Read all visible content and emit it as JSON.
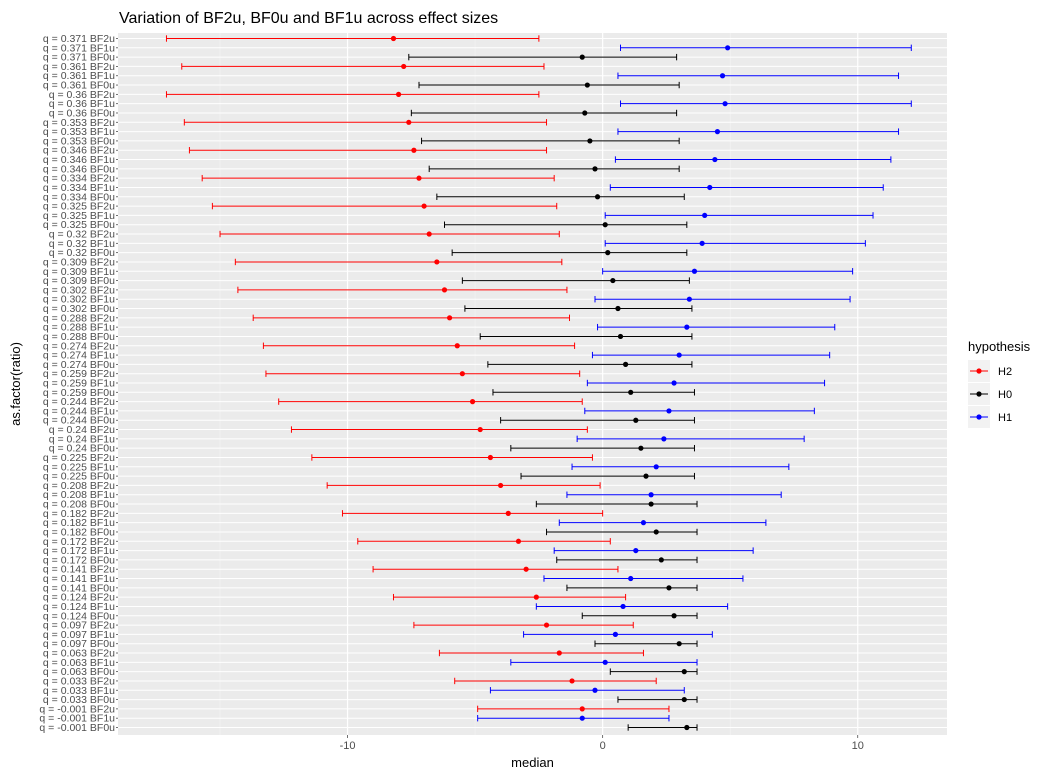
{
  "chart_data": {
    "type": "errorbar",
    "title": "Variation of BF2u, BF0u and BF1u across effect sizes",
    "xlabel": "median",
    "ylabel": "as.factor(ratio)",
    "xlim": [
      -19,
      13.5
    ],
    "x_ticks": [
      -10,
      0,
      10
    ],
    "grid": true,
    "legend": {
      "title": "hypothesis",
      "placement": "right",
      "entries": [
        {
          "name": "H2",
          "color": "#ff0000"
        },
        {
          "name": "H0",
          "color": "#000000"
        },
        {
          "name": "H1",
          "color": "#0000ff"
        }
      ]
    },
    "rows": [
      {
        "label": "q = 0.371 BF2u",
        "hypothesis": "H2",
        "median": -8.2,
        "low": -17.1,
        "high": -2.5
      },
      {
        "label": "q = 0.371 BF1u",
        "hypothesis": "H1",
        "median": 4.9,
        "low": 0.7,
        "high": 12.1
      },
      {
        "label": "q = 0.371 BF0u",
        "hypothesis": "H0",
        "median": -0.8,
        "low": -7.6,
        "high": 2.9
      },
      {
        "label": "q = 0.361 BF2u",
        "hypothesis": "H2",
        "median": -7.8,
        "low": -16.5,
        "high": -2.3
      },
      {
        "label": "q = 0.361 BF1u",
        "hypothesis": "H1",
        "median": 4.7,
        "low": 0.6,
        "high": 11.6
      },
      {
        "label": "q = 0.361 BF0u",
        "hypothesis": "H0",
        "median": -0.6,
        "low": -7.2,
        "high": 3.0
      },
      {
        "label": "q = 0.36 BF2u",
        "hypothesis": "H2",
        "median": -8.0,
        "low": -17.1,
        "high": -2.5
      },
      {
        "label": "q = 0.36 BF1u",
        "hypothesis": "H1",
        "median": 4.8,
        "low": 0.7,
        "high": 12.1
      },
      {
        "label": "q = 0.36 BF0u",
        "hypothesis": "H0",
        "median": -0.7,
        "low": -7.5,
        "high": 2.9
      },
      {
        "label": "q = 0.353 BF2u",
        "hypothesis": "H2",
        "median": -7.6,
        "low": -16.4,
        "high": -2.2
      },
      {
        "label": "q = 0.353 BF1u",
        "hypothesis": "H1",
        "median": 4.5,
        "low": 0.6,
        "high": 11.6
      },
      {
        "label": "q = 0.353 BF0u",
        "hypothesis": "H0",
        "median": -0.5,
        "low": -7.1,
        "high": 3.0
      },
      {
        "label": "q = 0.346 BF2u",
        "hypothesis": "H2",
        "median": -7.4,
        "low": -16.2,
        "high": -2.2
      },
      {
        "label": "q = 0.346 BF1u",
        "hypothesis": "H1",
        "median": 4.4,
        "low": 0.5,
        "high": 11.3
      },
      {
        "label": "q = 0.346 BF0u",
        "hypothesis": "H0",
        "median": -0.3,
        "low": -6.8,
        "high": 3.0
      },
      {
        "label": "q = 0.334 BF2u",
        "hypothesis": "H2",
        "median": -7.2,
        "low": -15.7,
        "high": -1.9
      },
      {
        "label": "q = 0.334 BF1u",
        "hypothesis": "H1",
        "median": 4.2,
        "low": 0.3,
        "high": 11.0
      },
      {
        "label": "q = 0.334 BF0u",
        "hypothesis": "H0",
        "median": -0.2,
        "low": -6.5,
        "high": 3.2
      },
      {
        "label": "q = 0.325 BF2u",
        "hypothesis": "H2",
        "median": -7.0,
        "low": -15.3,
        "high": -1.8
      },
      {
        "label": "q = 0.325 BF1u",
        "hypothesis": "H1",
        "median": 4.0,
        "low": 0.1,
        "high": 10.6
      },
      {
        "label": "q = 0.325 BF0u",
        "hypothesis": "H0",
        "median": 0.1,
        "low": -6.2,
        "high": 3.3
      },
      {
        "label": "q = 0.32 BF2u",
        "hypothesis": "H2",
        "median": -6.8,
        "low": -15.0,
        "high": -1.7
      },
      {
        "label": "q = 0.32 BF1u",
        "hypothesis": "H1",
        "median": 3.9,
        "low": 0.1,
        "high": 10.3
      },
      {
        "label": "q = 0.32 BF0u",
        "hypothesis": "H0",
        "median": 0.2,
        "low": -5.9,
        "high": 3.3
      },
      {
        "label": "q = 0.309 BF2u",
        "hypothesis": "H2",
        "median": -6.5,
        "low": -14.4,
        "high": -1.6
      },
      {
        "label": "q = 0.309 BF1u",
        "hypothesis": "H1",
        "median": 3.6,
        "low": 0.0,
        "high": 9.8
      },
      {
        "label": "q = 0.309 BF0u",
        "hypothesis": "H0",
        "median": 0.4,
        "low": -5.5,
        "high": 3.4
      },
      {
        "label": "q = 0.302 BF2u",
        "hypothesis": "H2",
        "median": -6.2,
        "low": -14.3,
        "high": -1.4
      },
      {
        "label": "q = 0.302 BF1u",
        "hypothesis": "H1",
        "median": 3.4,
        "low": -0.3,
        "high": 9.7
      },
      {
        "label": "q = 0.302 BF0u",
        "hypothesis": "H0",
        "median": 0.6,
        "low": -5.4,
        "high": 3.5
      },
      {
        "label": "q = 0.288 BF2u",
        "hypothesis": "H2",
        "median": -6.0,
        "low": -13.7,
        "high": -1.3
      },
      {
        "label": "q = 0.288 BF1u",
        "hypothesis": "H1",
        "median": 3.3,
        "low": -0.2,
        "high": 9.1
      },
      {
        "label": "q = 0.288 BF0u",
        "hypothesis": "H0",
        "median": 0.7,
        "low": -4.8,
        "high": 3.5
      },
      {
        "label": "q = 0.274 BF2u",
        "hypothesis": "H2",
        "median": -5.7,
        "low": -13.3,
        "high": -1.1
      },
      {
        "label": "q = 0.274 BF1u",
        "hypothesis": "H1",
        "median": 3.0,
        "low": -0.4,
        "high": 8.9
      },
      {
        "label": "q = 0.274 BF0u",
        "hypothesis": "H0",
        "median": 0.9,
        "low": -4.5,
        "high": 3.5
      },
      {
        "label": "q = 0.259 BF2u",
        "hypothesis": "H2",
        "median": -5.5,
        "low": -13.2,
        "high": -0.9
      },
      {
        "label": "q = 0.259 BF1u",
        "hypothesis": "H1",
        "median": 2.8,
        "low": -0.6,
        "high": 8.7
      },
      {
        "label": "q = 0.259 BF0u",
        "hypothesis": "H0",
        "median": 1.1,
        "low": -4.3,
        "high": 3.6
      },
      {
        "label": "q = 0.244 BF2u",
        "hypothesis": "H2",
        "median": -5.1,
        "low": -12.7,
        "high": -0.8
      },
      {
        "label": "q = 0.244 BF1u",
        "hypothesis": "H1",
        "median": 2.6,
        "low": -0.7,
        "high": 8.3
      },
      {
        "label": "q = 0.244 BF0u",
        "hypothesis": "H0",
        "median": 1.3,
        "low": -4.0,
        "high": 3.6
      },
      {
        "label": "q = 0.24 BF2u",
        "hypothesis": "H2",
        "median": -4.8,
        "low": -12.2,
        "high": -0.6
      },
      {
        "label": "q = 0.24 BF1u",
        "hypothesis": "H1",
        "median": 2.4,
        "low": -1.0,
        "high": 7.9
      },
      {
        "label": "q = 0.24 BF0u",
        "hypothesis": "H0",
        "median": 1.5,
        "low": -3.6,
        "high": 3.6
      },
      {
        "label": "q = 0.225 BF2u",
        "hypothesis": "H2",
        "median": -4.4,
        "low": -11.4,
        "high": -0.4
      },
      {
        "label": "q = 0.225 BF1u",
        "hypothesis": "H1",
        "median": 2.1,
        "low": -1.2,
        "high": 7.3
      },
      {
        "label": "q = 0.225 BF0u",
        "hypothesis": "H0",
        "median": 1.7,
        "low": -3.2,
        "high": 3.6
      },
      {
        "label": "q = 0.208 BF2u",
        "hypothesis": "H2",
        "median": -4.0,
        "low": -10.8,
        "high": -0.1
      },
      {
        "label": "q = 0.208 BF1u",
        "hypothesis": "H1",
        "median": 1.9,
        "low": -1.4,
        "high": 7.0
      },
      {
        "label": "q = 0.208 BF0u",
        "hypothesis": "H0",
        "median": 1.9,
        "low": -2.6,
        "high": 3.7
      },
      {
        "label": "q = 0.182 BF2u",
        "hypothesis": "H2",
        "median": -3.7,
        "low": -10.2,
        "high": 0.0
      },
      {
        "label": "q = 0.182 BF1u",
        "hypothesis": "H1",
        "median": 1.6,
        "low": -1.7,
        "high": 6.4
      },
      {
        "label": "q = 0.182 BF0u",
        "hypothesis": "H0",
        "median": 2.1,
        "low": -2.2,
        "high": 3.7
      },
      {
        "label": "q = 0.172 BF2u",
        "hypothesis": "H2",
        "median": -3.3,
        "low": -9.6,
        "high": 0.3
      },
      {
        "label": "q = 0.172 BF1u",
        "hypothesis": "H1",
        "median": 1.3,
        "low": -1.9,
        "high": 5.9
      },
      {
        "label": "q = 0.172 BF0u",
        "hypothesis": "H0",
        "median": 2.3,
        "low": -1.8,
        "high": 3.7
      },
      {
        "label": "q = 0.141 BF2u",
        "hypothesis": "H2",
        "median": -3.0,
        "low": -9.0,
        "high": 0.6
      },
      {
        "label": "q = 0.141 BF1u",
        "hypothesis": "H1",
        "median": 1.1,
        "low": -2.3,
        "high": 5.5
      },
      {
        "label": "q = 0.141 BF0u",
        "hypothesis": "H0",
        "median": 2.6,
        "low": -1.4,
        "high": 3.7
      },
      {
        "label": "q = 0.124 BF2u",
        "hypothesis": "H2",
        "median": -2.6,
        "low": -8.2,
        "high": 0.9
      },
      {
        "label": "q = 0.124 BF1u",
        "hypothesis": "H1",
        "median": 0.8,
        "low": -2.6,
        "high": 4.9
      },
      {
        "label": "q = 0.124 BF0u",
        "hypothesis": "H0",
        "median": 2.8,
        "low": -0.8,
        "high": 3.7
      },
      {
        "label": "q = 0.097 BF2u",
        "hypothesis": "H2",
        "median": -2.2,
        "low": -7.4,
        "high": 1.2
      },
      {
        "label": "q = 0.097 BF1u",
        "hypothesis": "H1",
        "median": 0.5,
        "low": -3.1,
        "high": 4.3
      },
      {
        "label": "q = 0.097 BF0u",
        "hypothesis": "H0",
        "median": 3.0,
        "low": -0.3,
        "high": 3.7
      },
      {
        "label": "q = 0.063 BF2u",
        "hypothesis": "H2",
        "median": -1.7,
        "low": -6.4,
        "high": 1.6
      },
      {
        "label": "q = 0.063 BF1u",
        "hypothesis": "H1",
        "median": 0.1,
        "low": -3.6,
        "high": 3.7
      },
      {
        "label": "q = 0.063 BF0u",
        "hypothesis": "H0",
        "median": 3.2,
        "low": 0.3,
        "high": 3.7
      },
      {
        "label": "q = 0.033 BF2u",
        "hypothesis": "H2",
        "median": -1.2,
        "low": -5.8,
        "high": 2.1
      },
      {
        "label": "q = 0.033 BF1u",
        "hypothesis": "H1",
        "median": -0.3,
        "low": -4.4,
        "high": 3.2
      },
      {
        "label": "q = 0.033 BF0u",
        "hypothesis": "H0",
        "median": 3.2,
        "low": 0.6,
        "high": 3.7
      },
      {
        "label": "q = -0.001 BF2u",
        "hypothesis": "H2",
        "median": -0.8,
        "low": -4.9,
        "high": 2.6
      },
      {
        "label": "q = -0.001 BF1u",
        "hypothesis": "H1",
        "median": -0.8,
        "low": -4.9,
        "high": 2.6
      },
      {
        "label": "q = -0.001 BF0u",
        "hypothesis": "H0",
        "median": 3.3,
        "low": 1.0,
        "high": 3.7
      }
    ]
  }
}
